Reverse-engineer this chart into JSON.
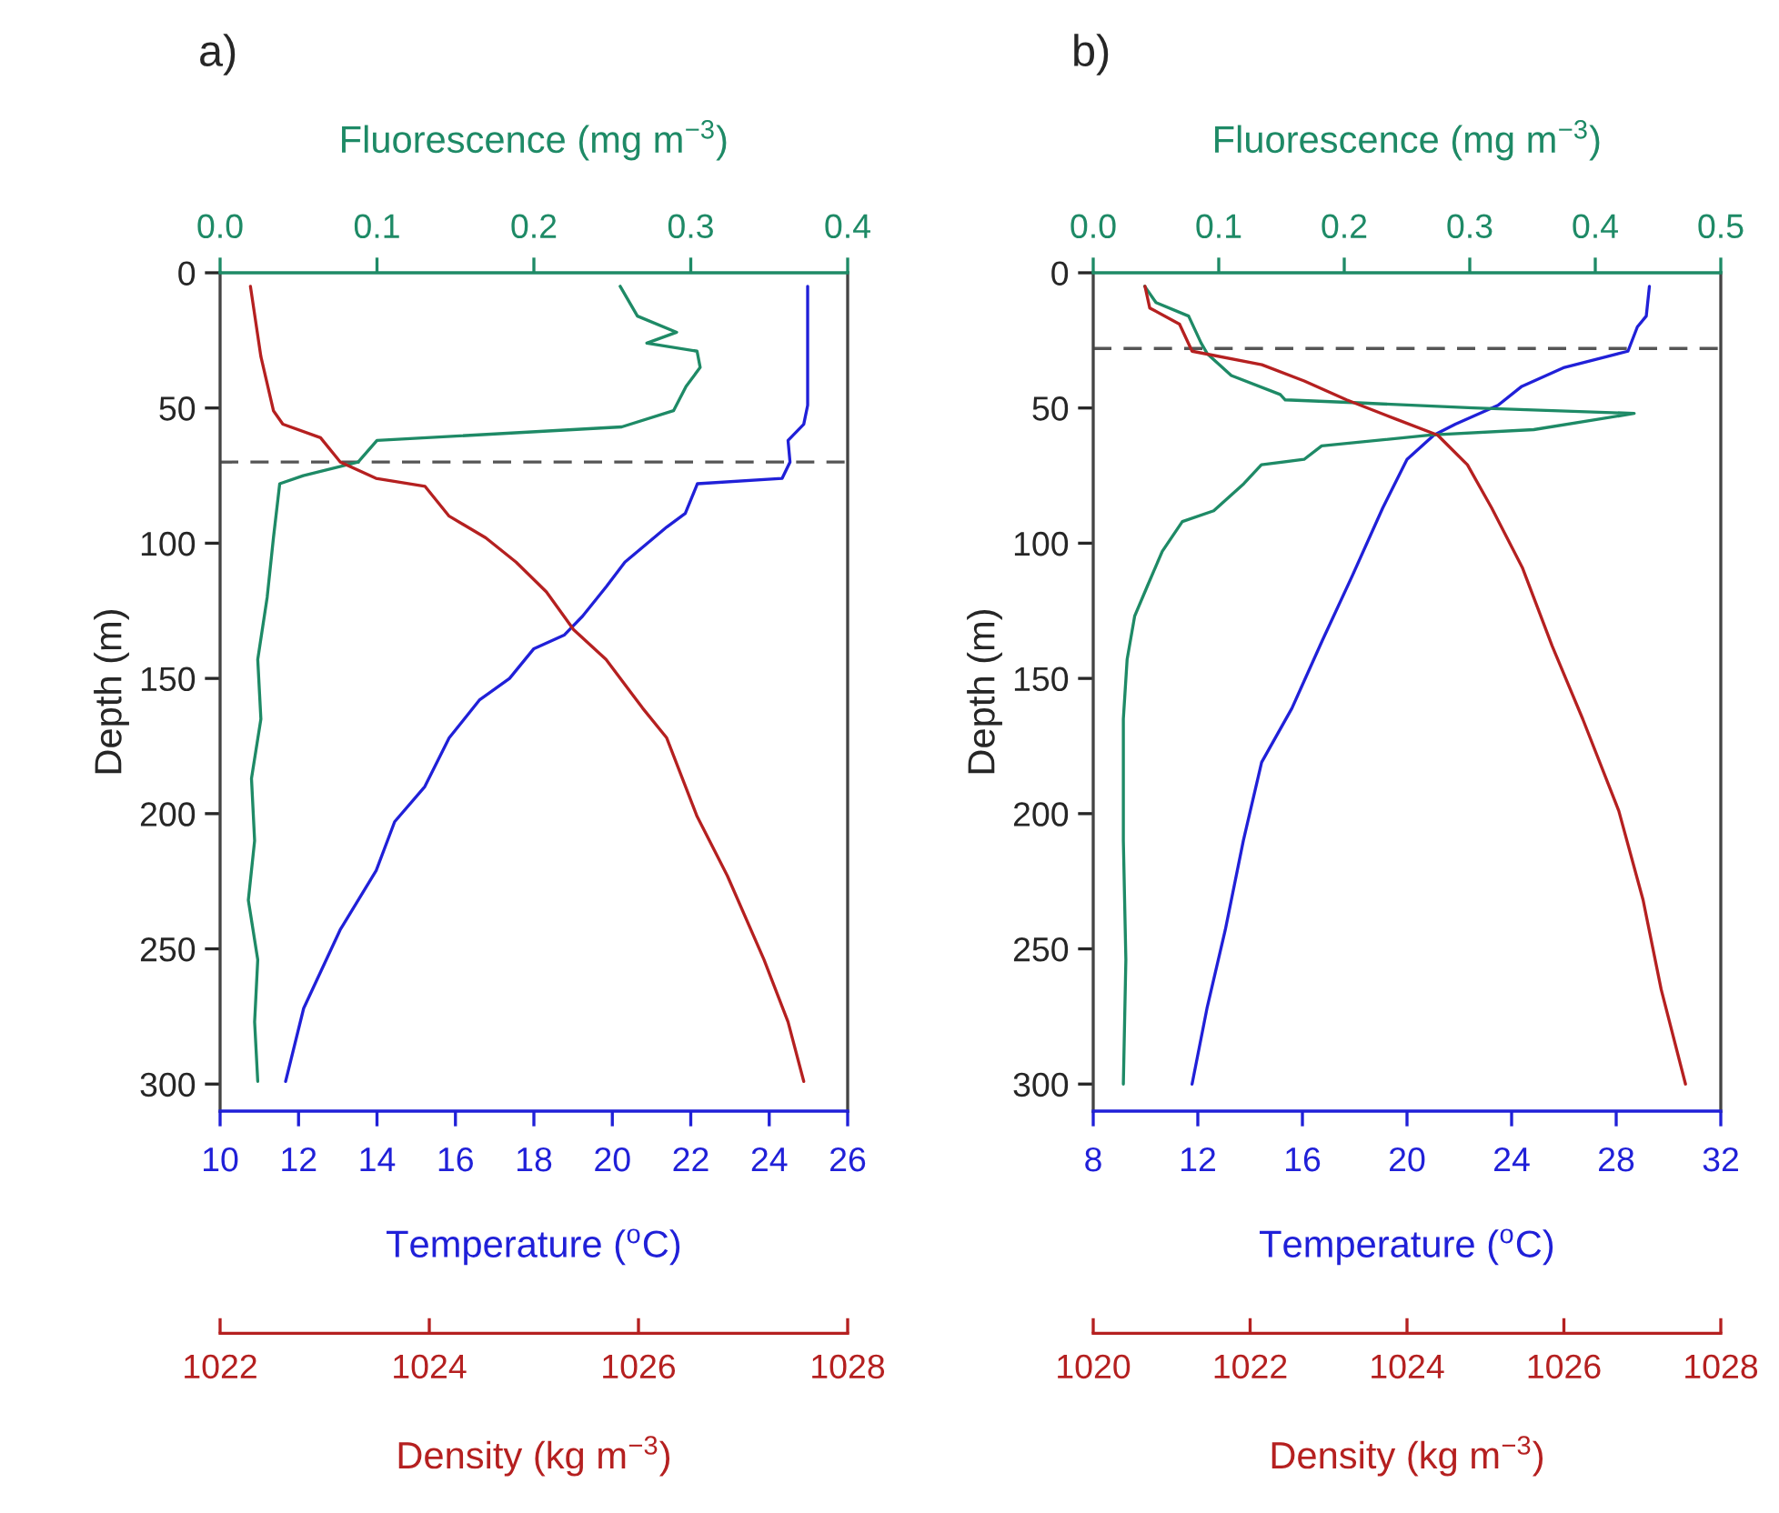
{
  "chart_data": [
    {
      "type": "line",
      "title": "a)",
      "ylabel": "Depth (m)",
      "xlabel": "Temperature ($^{o}$C)",
      "x2label": "Fluorescence (mg m$^{−3}$)",
      "ylim": [
        310,
        0
      ],
      "yticks": [
        0,
        50,
        100,
        150,
        200,
        250,
        300
      ],
      "xlim": [
        10,
        26
      ],
      "xticks": [
        10,
        12,
        14,
        16,
        18,
        20,
        22,
        24,
        26
      ],
      "x2lim": [
        0,
        0.4
      ],
      "x2ticks": [
        {
          "value": 0,
          "label": "0.0"
        },
        0.1,
        0.2,
        0.3,
        0.4
      ],
      "grid": false,
      "ref_lines": [
        {
          "axis": "y",
          "value": 70,
          "line_style": "dashed",
          "color": "#555555"
        }
      ],
      "series": [
        {
          "color": "#2020d8",
          "x": [
            24.98,
            24.98,
            24.88,
            24.48,
            24.53,
            24.33,
            22.17,
            21.86,
            21.39,
            20.32,
            19.85,
            19.24,
            18.77,
            18.0,
            17.38,
            16.61,
            15.84,
            15.22,
            14.45,
            13.98,
            13.06,
            12.13,
            11.67
          ],
          "values": [
            5,
            49,
            56,
            62,
            70,
            76,
            78,
            89,
            94,
            107,
            116,
            127,
            134,
            139,
            150,
            158,
            172,
            190,
            203,
            221,
            243,
            272,
            299
          ]
        },
        {
          "axis": "x2",
          "color": "#1e8a66",
          "x": [
            0.255,
            0.266,
            0.291,
            0.272,
            0.304,
            0.306,
            0.297,
            0.289,
            0.256,
            0.1,
            0.088,
            0.053,
            0.038,
            0.034,
            0.03,
            0.024,
            0.026,
            0.02,
            0.022,
            0.018,
            0.024,
            0.022,
            0.024
          ],
          "values": [
            5,
            16,
            22,
            26,
            29,
            35,
            42,
            51,
            57,
            62,
            70,
            75,
            78,
            98,
            120,
            143,
            165,
            187,
            210,
            232,
            254,
            277,
            299
          ]
        }
      ]
    },
    {
      "type": "line",
      "xlabel": "Density (kg m$^{−3}$)",
      "tick_labels": "x",
      "ylim": [
        310,
        0
      ],
      "xlim": [
        1022,
        1028
      ],
      "xticks": [
        1022,
        1024,
        1026,
        1028
      ],
      "series": [
        {
          "color": "#b52020",
          "x": [
            1022.29,
            1022.39,
            1022.51,
            1022.6,
            1022.96,
            1023.15,
            1023.49,
            1023.96,
            1024.19,
            1024.54,
            1024.83,
            1025.12,
            1025.38,
            1025.69,
            1026.04,
            1026.27,
            1026.56,
            1026.85,
            1027.2,
            1027.43,
            1027.58
          ],
          "values": [
            5,
            31,
            51,
            56,
            61,
            70,
            76,
            79,
            90,
            98,
            107,
            118,
            132,
            143,
            161,
            172,
            201,
            223,
            254,
            277,
            299
          ]
        }
      ]
    },
    {
      "type": "line",
      "title": "b)",
      "ylabel": "Depth (m)",
      "xlabel": "Temperature ($^{o}$C)",
      "x2label": "Fluorescence (mg m$^{−3}$)",
      "ylim": [
        310,
        0
      ],
      "yticks": [
        0,
        50,
        100,
        150,
        200,
        250,
        300
      ],
      "xlim": [
        8,
        32
      ],
      "xticks": [
        8,
        12,
        16,
        20,
        24,
        28,
        32
      ],
      "x2lim": [
        0,
        0.5
      ],
      "x2ticks": [
        {
          "value": 0,
          "label": "0.0"
        },
        0.1,
        0.2,
        0.3,
        0.4,
        0.5
      ],
      "grid": false,
      "ref_lines": [
        {
          "axis": "y",
          "value": 28,
          "line_style": "dashed",
          "color": "#555555"
        }
      ],
      "series": [
        {
          "color": "#2020d8",
          "x": [
            29.27,
            29.15,
            28.81,
            28.45,
            27.65,
            26.02,
            24.39,
            23.48,
            21.85,
            21.03,
            20.0,
            19.07,
            17.91,
            16.76,
            15.6,
            14.44,
            13.74,
            13.05,
            12.35,
            11.78
          ],
          "values": [
            5,
            16,
            20,
            29,
            31,
            35,
            42,
            49,
            56,
            60,
            69,
            87,
            112,
            136,
            161,
            181,
            210,
            243,
            272,
            300
          ]
        },
        {
          "axis": "x2",
          "color": "#1e8a66",
          "x": [
            0.041,
            0.05,
            0.076,
            0.086,
            0.091,
            0.11,
            0.149,
            0.153,
            0.207,
            0.303,
            0.431,
            0.351,
            0.269,
            0.182,
            0.168,
            0.134,
            0.12,
            0.096,
            0.071,
            0.055,
            0.043,
            0.033,
            0.027,
            0.024,
            0.024,
            0.026,
            0.024
          ],
          "values": [
            5,
            11,
            16,
            26,
            30,
            38,
            45,
            47,
            48,
            50,
            52,
            58,
            60,
            64,
            69,
            71,
            78,
            88,
            92,
            103,
            116,
            127,
            143,
            165,
            210,
            254,
            300
          ]
        }
      ]
    },
    {
      "type": "line",
      "xlabel": "Density (kg m$^{−3}$)",
      "tick_labels": "x",
      "ylim": [
        310,
        0
      ],
      "xlim": [
        1020,
        1028
      ],
      "xticks": [
        1020,
        1022,
        1024,
        1026,
        1028
      ],
      "series": [
        {
          "color": "#b52020",
          "x": [
            1020.66,
            1020.72,
            1021.1,
            1021.26,
            1022.15,
            1022.69,
            1023.23,
            1023.85,
            1024.39,
            1024.77,
            1025.08,
            1025.47,
            1025.85,
            1026.24,
            1026.7,
            1027.01,
            1027.24,
            1027.55
          ],
          "values": [
            5,
            13,
            19,
            29,
            34,
            40,
            47,
            54,
            60,
            71,
            87,
            109,
            138,
            165,
            199,
            232,
            265,
            300
          ]
        }
      ]
    }
  ]
}
